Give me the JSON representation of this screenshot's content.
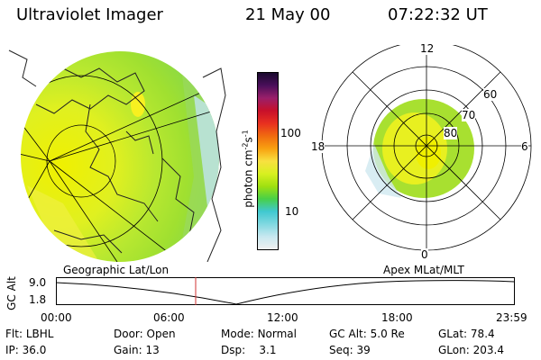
{
  "header": {
    "instrument": "Ultraviolet Imager",
    "date": "21 May 00",
    "time": "07:22:32 UT"
  },
  "colorbar": {
    "label": "photon cm",
    "label_sup1": "-2",
    "label_mid": "s",
    "label_sup2": "-1",
    "ticks": [
      "100",
      "10"
    ],
    "colors": [
      "#1a0a2e",
      "#4a0f5a",
      "#9a1f6a",
      "#c8102a",
      "#e83020",
      "#f06a10",
      "#f8a010",
      "#f8e040",
      "#d8f020",
      "#a0e010",
      "#48d048",
      "#40c8d0",
      "#80d8e0",
      "#c8e8f0",
      "#f0f0f0"
    ]
  },
  "polar": {
    "mlt_labels": {
      "top": "12",
      "left": "18",
      "right": "6",
      "bottom": "0"
    },
    "lat_labels": [
      "60",
      "70",
      "80"
    ]
  },
  "panel_labels": {
    "left": "Geographic Lat/Lon",
    "right": "Apex MLat/MLT"
  },
  "altitude_plot": {
    "ylabel": "GC Alt",
    "y_ticks": [
      "9.0",
      "1.8"
    ],
    "x_ticks": [
      "00:00",
      "06:00",
      "12:00",
      "18:00",
      "23:59"
    ],
    "marker_color": "#d03030"
  },
  "footer": {
    "row1": [
      {
        "key": "Flt:",
        "value": "LBHL"
      },
      {
        "key": "Door:",
        "value": "Open"
      },
      {
        "key": "Mode:",
        "value": "Normal"
      },
      {
        "key": "GC Alt:",
        "value": "5.0 Re"
      },
      {
        "key": "GLat:",
        "value": "78.4"
      }
    ],
    "row2": [
      {
        "key": "IP:",
        "value": "36.0"
      },
      {
        "key": "Gain:",
        "value": "13"
      },
      {
        "key": "Dsp:",
        "value": "3.1"
      },
      {
        "key": "Seq:",
        "value": "39"
      },
      {
        "key": "GLon:",
        "value": "203.4"
      }
    ]
  }
}
